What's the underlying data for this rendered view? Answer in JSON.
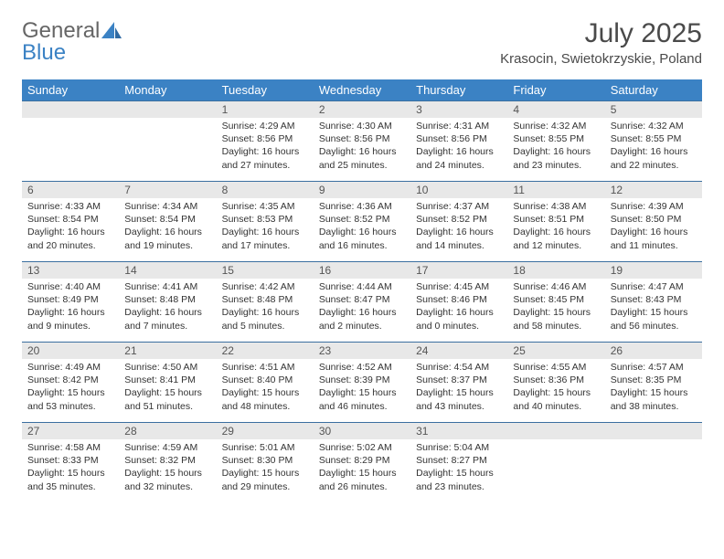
{
  "logo": {
    "text1": "General",
    "text2": "Blue"
  },
  "title": "July 2025",
  "location": "Krasocin, Swietokrzyskie, Poland",
  "colors": {
    "header_bg": "#3b82c4",
    "header_text": "#ffffff",
    "daynum_bg": "#e8e8e8",
    "daynum_border": "#3b6fa0",
    "text": "#333333",
    "logo_gray": "#666666",
    "logo_blue": "#3b82c4"
  },
  "weekdays": [
    "Sunday",
    "Monday",
    "Tuesday",
    "Wednesday",
    "Thursday",
    "Friday",
    "Saturday"
  ],
  "weeks": [
    [
      null,
      null,
      {
        "n": "1",
        "sr": "4:29 AM",
        "ss": "8:56 PM",
        "dl": "16 hours and 27 minutes."
      },
      {
        "n": "2",
        "sr": "4:30 AM",
        "ss": "8:56 PM",
        "dl": "16 hours and 25 minutes."
      },
      {
        "n": "3",
        "sr": "4:31 AM",
        "ss": "8:56 PM",
        "dl": "16 hours and 24 minutes."
      },
      {
        "n": "4",
        "sr": "4:32 AM",
        "ss": "8:55 PM",
        "dl": "16 hours and 23 minutes."
      },
      {
        "n": "5",
        "sr": "4:32 AM",
        "ss": "8:55 PM",
        "dl": "16 hours and 22 minutes."
      }
    ],
    [
      {
        "n": "6",
        "sr": "4:33 AM",
        "ss": "8:54 PM",
        "dl": "16 hours and 20 minutes."
      },
      {
        "n": "7",
        "sr": "4:34 AM",
        "ss": "8:54 PM",
        "dl": "16 hours and 19 minutes."
      },
      {
        "n": "8",
        "sr": "4:35 AM",
        "ss": "8:53 PM",
        "dl": "16 hours and 17 minutes."
      },
      {
        "n": "9",
        "sr": "4:36 AM",
        "ss": "8:52 PM",
        "dl": "16 hours and 16 minutes."
      },
      {
        "n": "10",
        "sr": "4:37 AM",
        "ss": "8:52 PM",
        "dl": "16 hours and 14 minutes."
      },
      {
        "n": "11",
        "sr": "4:38 AM",
        "ss": "8:51 PM",
        "dl": "16 hours and 12 minutes."
      },
      {
        "n": "12",
        "sr": "4:39 AM",
        "ss": "8:50 PM",
        "dl": "16 hours and 11 minutes."
      }
    ],
    [
      {
        "n": "13",
        "sr": "4:40 AM",
        "ss": "8:49 PM",
        "dl": "16 hours and 9 minutes."
      },
      {
        "n": "14",
        "sr": "4:41 AM",
        "ss": "8:48 PM",
        "dl": "16 hours and 7 minutes."
      },
      {
        "n": "15",
        "sr": "4:42 AM",
        "ss": "8:48 PM",
        "dl": "16 hours and 5 minutes."
      },
      {
        "n": "16",
        "sr": "4:44 AM",
        "ss": "8:47 PM",
        "dl": "16 hours and 2 minutes."
      },
      {
        "n": "17",
        "sr": "4:45 AM",
        "ss": "8:46 PM",
        "dl": "16 hours and 0 minutes."
      },
      {
        "n": "18",
        "sr": "4:46 AM",
        "ss": "8:45 PM",
        "dl": "15 hours and 58 minutes."
      },
      {
        "n": "19",
        "sr": "4:47 AM",
        "ss": "8:43 PM",
        "dl": "15 hours and 56 minutes."
      }
    ],
    [
      {
        "n": "20",
        "sr": "4:49 AM",
        "ss": "8:42 PM",
        "dl": "15 hours and 53 minutes."
      },
      {
        "n": "21",
        "sr": "4:50 AM",
        "ss": "8:41 PM",
        "dl": "15 hours and 51 minutes."
      },
      {
        "n": "22",
        "sr": "4:51 AM",
        "ss": "8:40 PM",
        "dl": "15 hours and 48 minutes."
      },
      {
        "n": "23",
        "sr": "4:52 AM",
        "ss": "8:39 PM",
        "dl": "15 hours and 46 minutes."
      },
      {
        "n": "24",
        "sr": "4:54 AM",
        "ss": "8:37 PM",
        "dl": "15 hours and 43 minutes."
      },
      {
        "n": "25",
        "sr": "4:55 AM",
        "ss": "8:36 PM",
        "dl": "15 hours and 40 minutes."
      },
      {
        "n": "26",
        "sr": "4:57 AM",
        "ss": "8:35 PM",
        "dl": "15 hours and 38 minutes."
      }
    ],
    [
      {
        "n": "27",
        "sr": "4:58 AM",
        "ss": "8:33 PM",
        "dl": "15 hours and 35 minutes."
      },
      {
        "n": "28",
        "sr": "4:59 AM",
        "ss": "8:32 PM",
        "dl": "15 hours and 32 minutes."
      },
      {
        "n": "29",
        "sr": "5:01 AM",
        "ss": "8:30 PM",
        "dl": "15 hours and 29 minutes."
      },
      {
        "n": "30",
        "sr": "5:02 AM",
        "ss": "8:29 PM",
        "dl": "15 hours and 26 minutes."
      },
      {
        "n": "31",
        "sr": "5:04 AM",
        "ss": "8:27 PM",
        "dl": "15 hours and 23 minutes."
      },
      null,
      null
    ]
  ],
  "labels": {
    "sunrise": "Sunrise:",
    "sunset": "Sunset:",
    "daylight": "Daylight:"
  }
}
